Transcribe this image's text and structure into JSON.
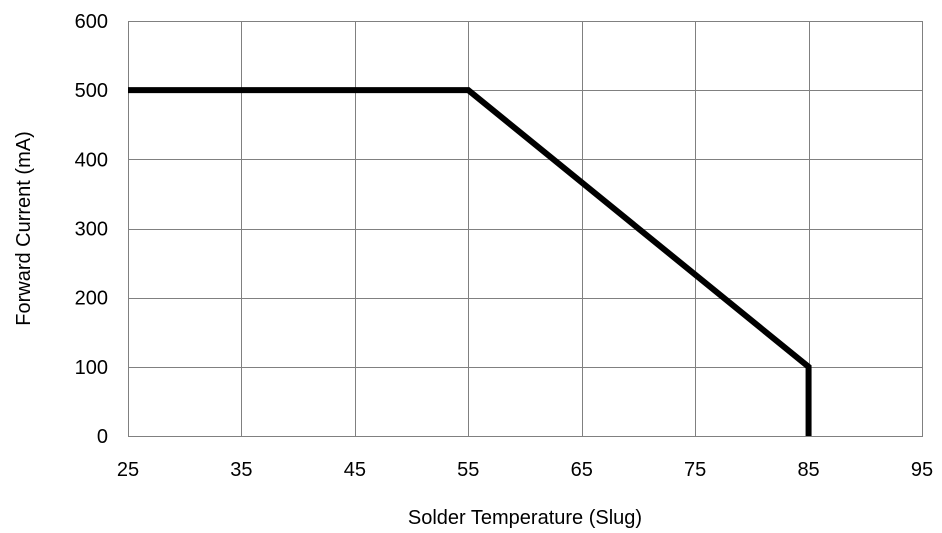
{
  "chart_data": {
    "type": "line",
    "title": "",
    "xlabel": "Solder Temperature (Slug)",
    "ylabel": "Forward Current (mA)",
    "xlim": [
      25,
      95
    ],
    "ylim": [
      0,
      600
    ],
    "x_ticks": [
      25,
      35,
      45,
      55,
      65,
      75,
      85,
      95
    ],
    "y_ticks": [
      0,
      100,
      200,
      300,
      400,
      500,
      600
    ],
    "grid": true,
    "legend": "none",
    "series": [
      {
        "color": "#000000",
        "points": [
          {
            "x": 25,
            "y": 500
          },
          {
            "x": 55,
            "y": 500
          },
          {
            "x": 85,
            "y": 100
          },
          {
            "x": 85,
            "y": 0
          }
        ]
      }
    ]
  }
}
